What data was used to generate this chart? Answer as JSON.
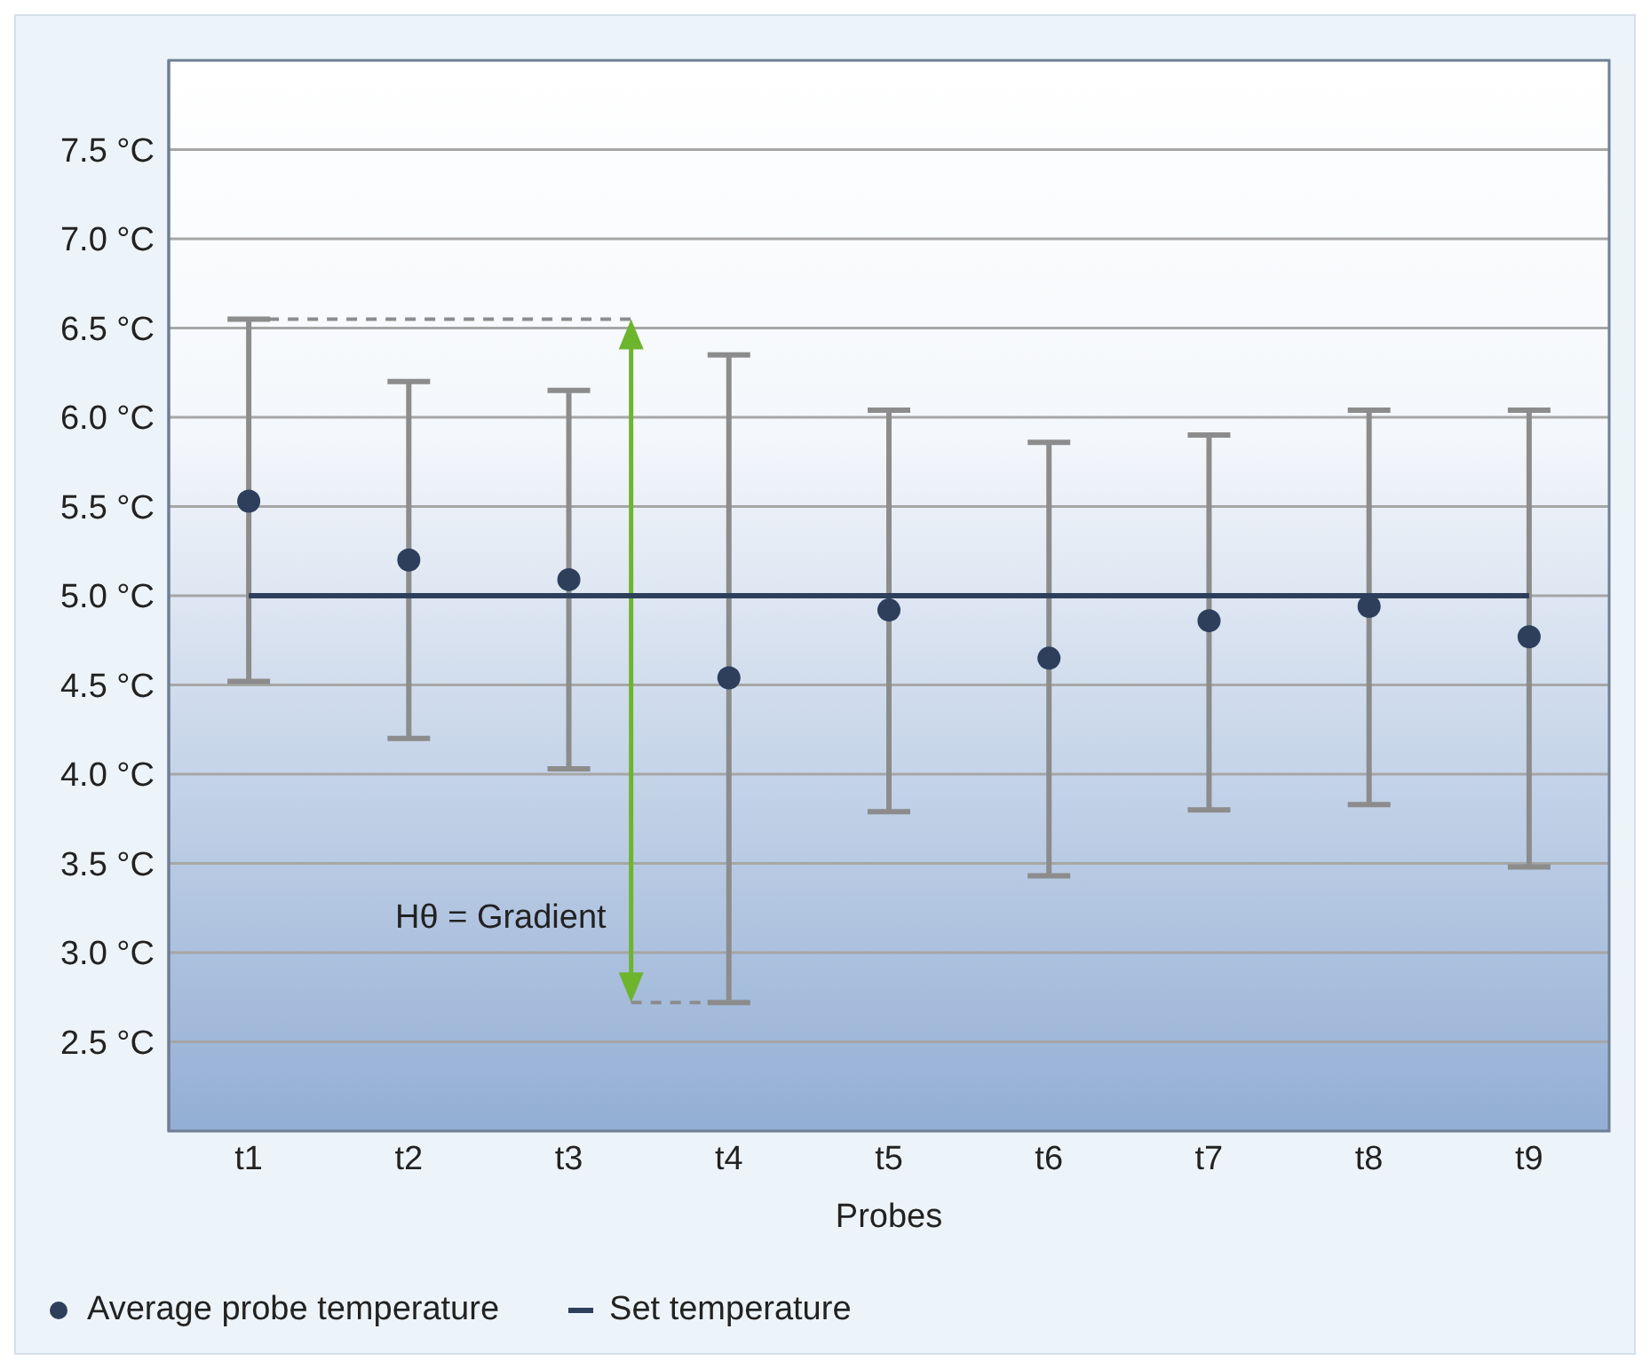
{
  "chart_data": {
    "type": "scatter",
    "xlabel": "Probes",
    "categories": [
      "t1",
      "t2",
      "t3",
      "t4",
      "t5",
      "t6",
      "t7",
      "t8",
      "t9"
    ],
    "series": [
      {
        "name": "Average probe temperature",
        "marker": "circle",
        "color": "#2e3f5c",
        "values": [
          5.53,
          5.2,
          5.09,
          4.54,
          4.92,
          4.65,
          4.86,
          4.94,
          4.77
        ],
        "errors": [
          [
            4.52,
            6.55
          ],
          [
            4.2,
            6.2
          ],
          [
            4.03,
            6.15
          ],
          [
            2.72,
            6.35
          ],
          [
            3.79,
            6.04
          ],
          [
            3.43,
            5.86
          ],
          [
            3.8,
            5.9
          ],
          [
            3.83,
            6.04
          ],
          [
            3.48,
            6.04
          ]
        ]
      },
      {
        "name": "Set temperature",
        "type": "line",
        "color": "#2e3f5c",
        "values": [
          5,
          5,
          5,
          5,
          5,
          5,
          5,
          5,
          5
        ]
      }
    ],
    "ylim": [
      2,
      8
    ],
    "yticks": [
      {
        "value": 2.5,
        "label": "2.5 °C"
      },
      {
        "value": 3.0,
        "label": "3.0 °C"
      },
      {
        "value": 3.5,
        "label": "3.5 °C"
      },
      {
        "value": 4.0,
        "label": "4.0 °C"
      },
      {
        "value": 4.5,
        "label": "4.5 °C"
      },
      {
        "value": 5.0,
        "label": "5.0 °C"
      },
      {
        "value": 5.5,
        "label": "5.5 °C"
      },
      {
        "value": 6.0,
        "label": "6.0 °C"
      },
      {
        "value": 6.5,
        "label": "6.5 °C"
      },
      {
        "value": 7.0,
        "label": "7.0 °C"
      },
      {
        "value": 7.5,
        "label": "7.5 °C"
      }
    ],
    "grid": "y",
    "legend": "bottom",
    "line_style": "solid",
    "annotations": [
      "Hθ = Gradient"
    ]
  }
}
